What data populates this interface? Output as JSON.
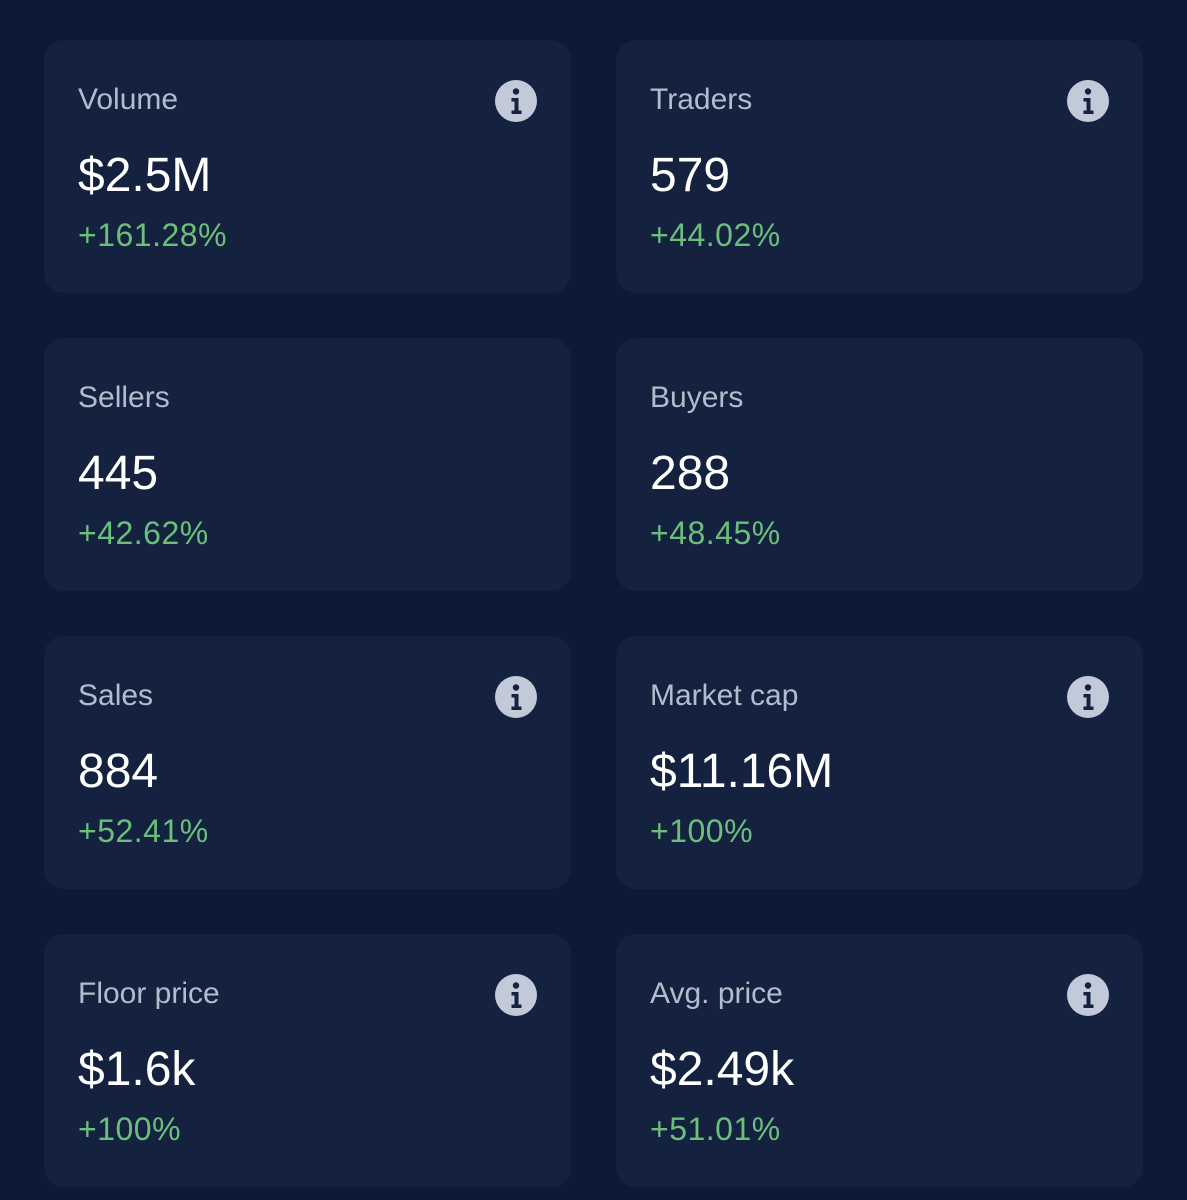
{
  "colors": {
    "page_background": "#0c1a36",
    "card_background": "#14213f",
    "label": "#b3bccd",
    "value": "#ffffff",
    "positive_change": "#6bbf7b",
    "info_icon": "#c2c9d8"
  },
  "stats": [
    {
      "label": "Volume",
      "value": "$2.5M",
      "change": "+161.28%",
      "has_info": true,
      "icon": "info-icon"
    },
    {
      "label": "Traders",
      "value": "579",
      "change": "+44.02%",
      "has_info": true,
      "icon": "info-icon"
    },
    {
      "label": "Sellers",
      "value": "445",
      "change": "+42.62%",
      "has_info": false
    },
    {
      "label": "Buyers",
      "value": "288",
      "change": "+48.45%",
      "has_info": false
    },
    {
      "label": "Sales",
      "value": "884",
      "change": "+52.41%",
      "has_info": true,
      "icon": "info-icon"
    },
    {
      "label": "Market cap",
      "value": "$11.16M",
      "change": "+100%",
      "has_info": true,
      "icon": "info-icon"
    },
    {
      "label": "Floor price",
      "value": "$1.6k",
      "change": "+100%",
      "has_info": true,
      "icon": "info-icon"
    },
    {
      "label": "Avg. price",
      "value": "$2.49k",
      "change": "+51.01%",
      "has_info": true,
      "icon": "info-icon"
    }
  ]
}
